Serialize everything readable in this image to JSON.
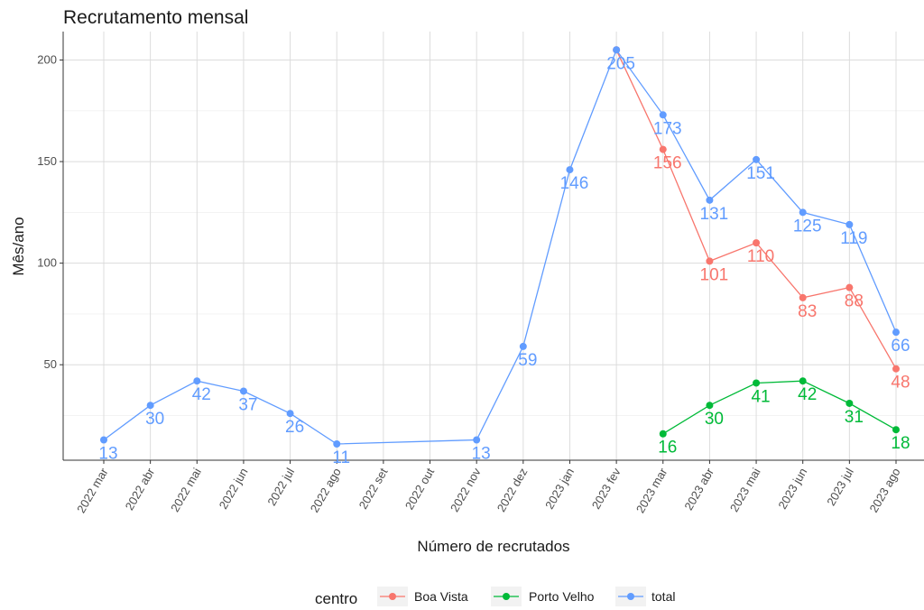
{
  "chart_data": {
    "type": "line",
    "title": "Recrutamento mensal",
    "xlabel": "Número de recrutados",
    "ylabel": "Mês/ano",
    "categories": [
      "2022 mar",
      "2022 abr",
      "2022 mai",
      "2022 jun",
      "2022 jul",
      "2022 ago",
      "2022 set",
      "2022 out",
      "2022 nov",
      "2022 dez",
      "2023 jan",
      "2023 fev",
      "2023 mar",
      "2023 abr",
      "2023 mai",
      "2023 jun",
      "2023 jul",
      "2023 ago"
    ],
    "yticks": [
      50,
      100,
      150,
      200
    ],
    "ylim": [
      3,
      214
    ],
    "grid": true,
    "legend_position": "bottom",
    "legend_title": "centro",
    "series": [
      {
        "name": "Boa Vista",
        "color": "#F8766D",
        "points": [
          {
            "x": "2023 fev",
            "y": 205,
            "label": ""
          },
          {
            "x": "2023 mar",
            "y": 156,
            "label": "156"
          },
          {
            "x": "2023 abr",
            "y": 101,
            "label": "101"
          },
          {
            "x": "2023 mai",
            "y": 110,
            "label": "110"
          },
          {
            "x": "2023 jun",
            "y": 83,
            "label": "83"
          },
          {
            "x": "2023 jul",
            "y": 88,
            "label": "88"
          },
          {
            "x": "2023 ago",
            "y": 48,
            "label": "48"
          }
        ]
      },
      {
        "name": "Porto Velho",
        "color": "#00BA38",
        "points": [
          {
            "x": "2023 mar",
            "y": 16,
            "label": "16"
          },
          {
            "x": "2023 abr",
            "y": 30,
            "label": "30"
          },
          {
            "x": "2023 mai",
            "y": 41,
            "label": "41"
          },
          {
            "x": "2023 jun",
            "y": 42,
            "label": "42"
          },
          {
            "x": "2023 jul",
            "y": 31,
            "label": "31"
          },
          {
            "x": "2023 ago",
            "y": 18,
            "label": "18"
          }
        ]
      },
      {
        "name": "total",
        "color": "#619CFF",
        "points": [
          {
            "x": "2022 mar",
            "y": 13,
            "label": "13"
          },
          {
            "x": "2022 abr",
            "y": 30,
            "label": "30"
          },
          {
            "x": "2022 mai",
            "y": 42,
            "label": "42"
          },
          {
            "x": "2022 jun",
            "y": 37,
            "label": "37"
          },
          {
            "x": "2022 jul",
            "y": 26,
            "label": "26"
          },
          {
            "x": "2022 ago",
            "y": 11,
            "label": "11"
          },
          {
            "x": "2022 nov",
            "y": 13,
            "label": "13"
          },
          {
            "x": "2022 dez",
            "y": 59,
            "label": "59"
          },
          {
            "x": "2023 jan",
            "y": 146,
            "label": "146"
          },
          {
            "x": "2023 fev",
            "y": 205,
            "label": "205"
          },
          {
            "x": "2023 mar",
            "y": 173,
            "label": "173"
          },
          {
            "x": "2023 abr",
            "y": 131,
            "label": "131"
          },
          {
            "x": "2023 mai",
            "y": 151,
            "label": "151"
          },
          {
            "x": "2023 jun",
            "y": 125,
            "label": "125"
          },
          {
            "x": "2023 jul",
            "y": 119,
            "label": "119"
          },
          {
            "x": "2023 ago",
            "y": 66,
            "label": "66"
          }
        ]
      }
    ]
  }
}
